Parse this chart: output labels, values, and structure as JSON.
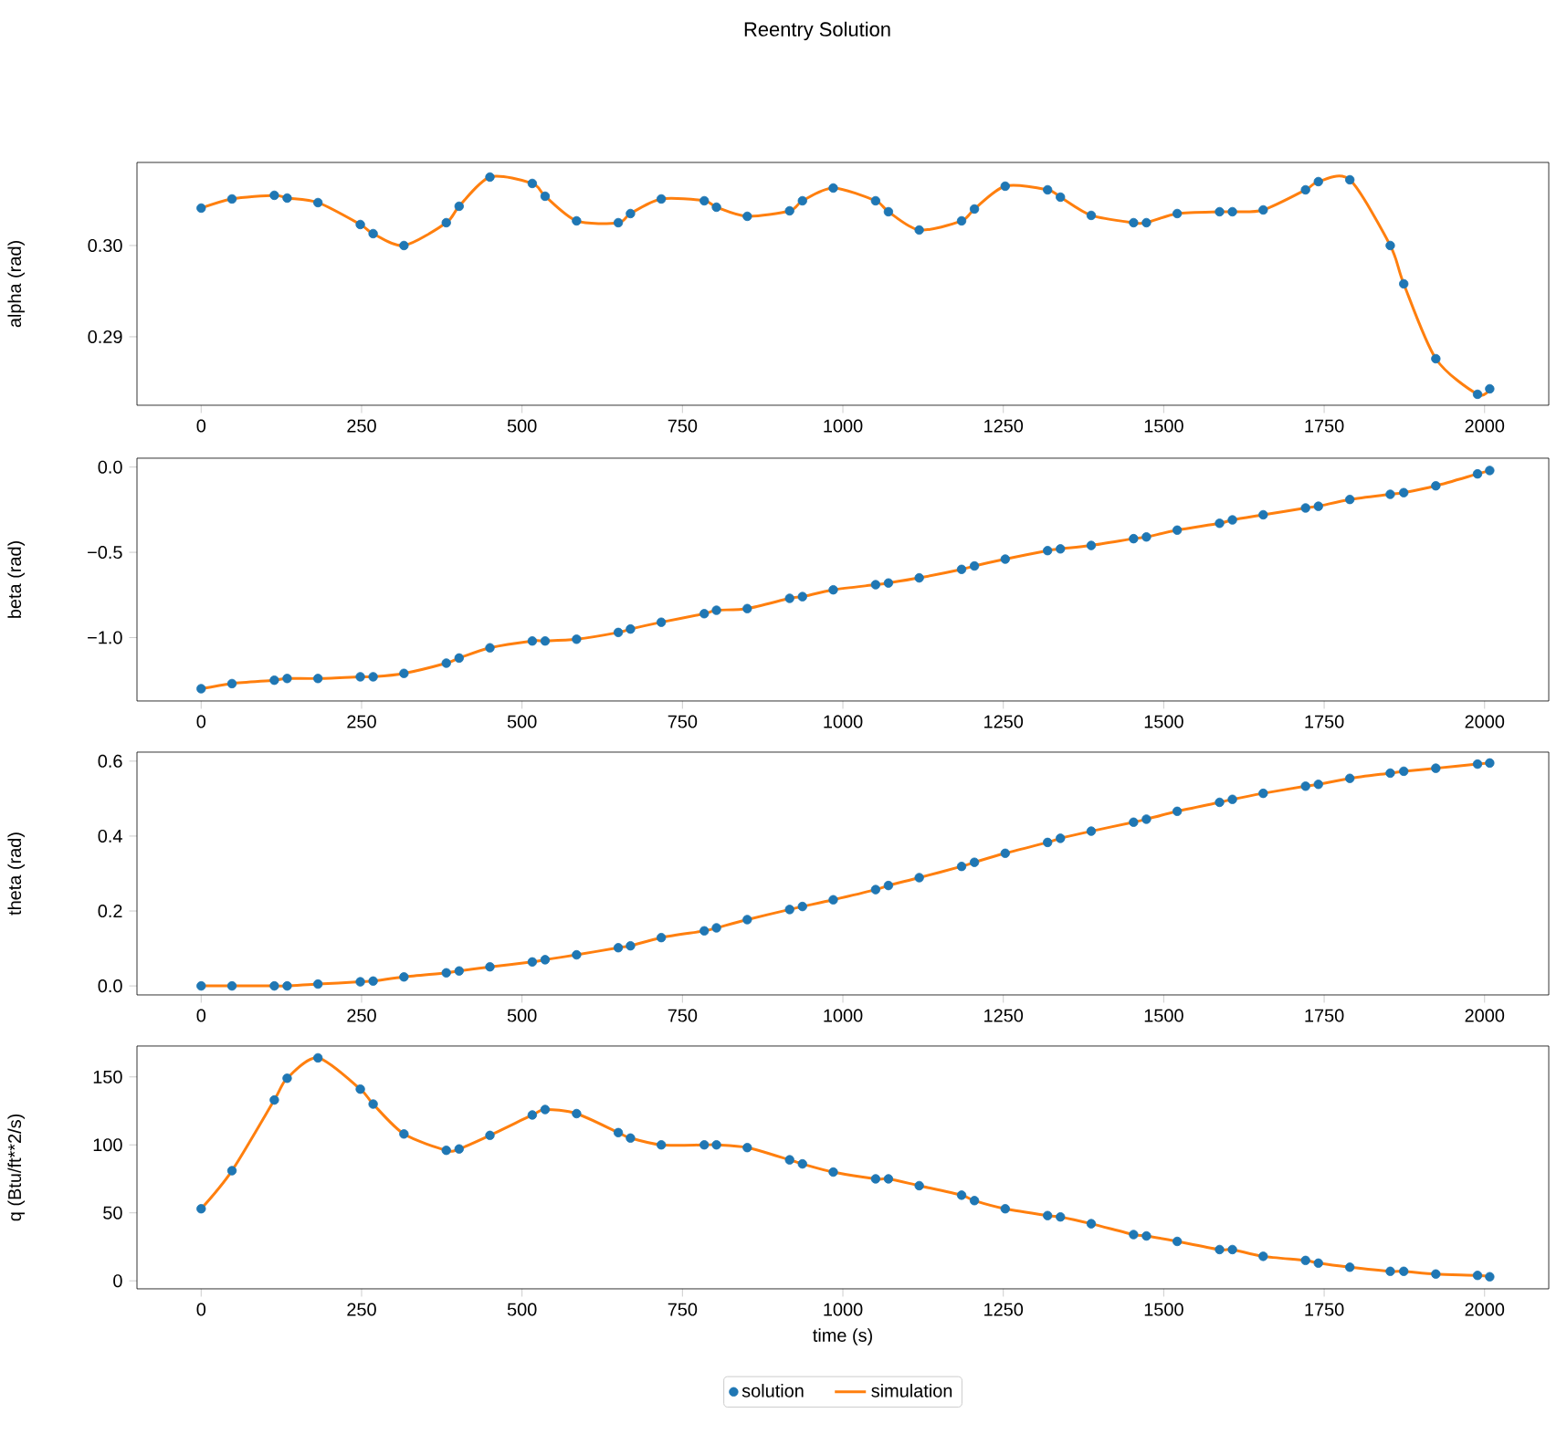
{
  "chart_data": [
    {
      "type": "line",
      "title": "Reentry Solution",
      "ylabel": "alpha (rad)",
      "xlim": [
        -100,
        2100
      ],
      "xticks": [
        0,
        250,
        500,
        750,
        1000,
        1250,
        1500,
        1750,
        2000
      ],
      "ylim": [
        0.2825,
        0.3091
      ],
      "yticks": [
        {
          "value": 0.29,
          "label": "0.29"
        },
        {
          "value": 0.3,
          "label": "0.30"
        }
      ],
      "x": [
        0,
        48,
        114,
        134,
        182,
        248,
        268,
        316,
        382,
        402,
        450,
        516,
        536,
        585,
        650,
        669,
        717,
        784,
        803,
        851,
        917,
        937,
        985,
        1051,
        1071,
        1119,
        1185,
        1205,
        1253,
        1319,
        1339,
        1387,
        1453,
        1473,
        1521,
        1587,
        1607,
        1655,
        1721,
        1741,
        1790,
        1853,
        1874,
        1924,
        1989,
        2008
      ],
      "series": [
        {
          "type": "scatter",
          "marker": "circle",
          "color": "#1f77b4",
          "values": [
            0.3041,
            0.3051,
            0.3055,
            0.3052,
            0.3047,
            0.3023,
            0.3013,
            0.3,
            0.3025,
            0.3043,
            0.3075,
            0.3068,
            0.3054,
            0.3027,
            0.3025,
            0.3035,
            0.3051,
            0.3049,
            0.3042,
            0.3032,
            0.3038,
            0.3049,
            0.3063,
            0.3049,
            0.3037,
            0.3017,
            0.3027,
            0.304,
            0.3065,
            0.3061,
            0.3053,
            0.3033,
            0.3025,
            0.3025,
            0.3035,
            0.3037,
            0.3037,
            0.3039,
            0.3061,
            0.307,
            0.3072,
            0.3,
            0.2958,
            0.2876,
            0.2837,
            0.2843
          ]
        },
        {
          "marker": "none",
          "color": "#ff7f0e",
          "values": [
            0.3041,
            0.3051,
            0.3055,
            0.3052,
            0.3047,
            0.3023,
            0.3013,
            0.3,
            0.3025,
            0.3043,
            0.3075,
            0.3068,
            0.3054,
            0.3027,
            0.3025,
            0.3035,
            0.3051,
            0.3049,
            0.3042,
            0.3032,
            0.3038,
            0.3049,
            0.3063,
            0.3049,
            0.3037,
            0.3017,
            0.3027,
            0.304,
            0.3065,
            0.3061,
            0.3053,
            0.3033,
            0.3025,
            0.3025,
            0.3035,
            0.3037,
            0.3037,
            0.3039,
            0.3061,
            0.307,
            0.3072,
            0.3,
            0.2958,
            0.2876,
            0.2837,
            0.2843
          ]
        }
      ]
    },
    {
      "type": "line",
      "ylabel": "beta (rad)",
      "xlim": [
        -100,
        2100
      ],
      "xticks": [
        0,
        250,
        500,
        750,
        1000,
        1250,
        1500,
        1750,
        2000
      ],
      "ylim": [
        -1.372,
        0.052
      ],
      "yticks": [
        {
          "value": -1.0,
          "label": "−1.0"
        },
        {
          "value": -0.5,
          "label": "−0.5"
        },
        {
          "value": 0.0,
          "label": "0.0"
        }
      ],
      "x": [
        0,
        48,
        114,
        134,
        182,
        248,
        268,
        316,
        382,
        402,
        450,
        516,
        536,
        585,
        650,
        669,
        717,
        784,
        803,
        851,
        917,
        937,
        985,
        1051,
        1071,
        1119,
        1185,
        1205,
        1253,
        1319,
        1339,
        1387,
        1453,
        1473,
        1521,
        1587,
        1607,
        1655,
        1721,
        1741,
        1790,
        1853,
        1874,
        1924,
        1989,
        2008
      ],
      "series": [
        {
          "type": "scatter",
          "marker": "circle",
          "color": "#1f77b4",
          "values": [
            -1.3,
            -1.27,
            -1.25,
            -1.24,
            -1.24,
            -1.23,
            -1.23,
            -1.21,
            -1.15,
            -1.12,
            -1.06,
            -1.02,
            -1.02,
            -1.01,
            -0.97,
            -0.95,
            -0.91,
            -0.86,
            -0.84,
            -0.83,
            -0.77,
            -0.76,
            -0.72,
            -0.69,
            -0.68,
            -0.65,
            -0.6,
            -0.58,
            -0.54,
            -0.49,
            -0.48,
            -0.46,
            -0.42,
            -0.41,
            -0.37,
            -0.33,
            -0.31,
            -0.28,
            -0.24,
            -0.23,
            -0.19,
            -0.16,
            -0.15,
            -0.11,
            -0.04,
            -0.02
          ]
        },
        {
          "marker": "none",
          "color": "#ff7f0e",
          "values": [
            -1.3,
            -1.27,
            -1.25,
            -1.24,
            -1.24,
            -1.23,
            -1.23,
            -1.21,
            -1.15,
            -1.12,
            -1.06,
            -1.02,
            -1.02,
            -1.01,
            -0.97,
            -0.95,
            -0.91,
            -0.86,
            -0.84,
            -0.83,
            -0.77,
            -0.76,
            -0.72,
            -0.69,
            -0.68,
            -0.65,
            -0.6,
            -0.58,
            -0.54,
            -0.49,
            -0.48,
            -0.46,
            -0.42,
            -0.41,
            -0.37,
            -0.33,
            -0.31,
            -0.28,
            -0.24,
            -0.23,
            -0.19,
            -0.16,
            -0.15,
            -0.11,
            -0.04,
            -0.02
          ]
        }
      ]
    },
    {
      "type": "line",
      "ylabel": "theta (rad)",
      "xlim": [
        -100,
        2100
      ],
      "xticks": [
        0,
        250,
        500,
        750,
        1000,
        1250,
        1500,
        1750,
        2000
      ],
      "ylim": [
        -0.024,
        0.624
      ],
      "yticks": [
        {
          "value": 0.0,
          "label": "0.0"
        },
        {
          "value": 0.2,
          "label": "0.2"
        },
        {
          "value": 0.4,
          "label": "0.4"
        },
        {
          "value": 0.6,
          "label": "0.6"
        }
      ],
      "x": [
        0,
        48,
        114,
        134,
        182,
        248,
        268,
        316,
        382,
        402,
        450,
        516,
        536,
        585,
        650,
        669,
        717,
        784,
        803,
        851,
        917,
        937,
        985,
        1051,
        1071,
        1119,
        1185,
        1205,
        1253,
        1319,
        1339,
        1387,
        1453,
        1473,
        1521,
        1587,
        1607,
        1655,
        1721,
        1741,
        1790,
        1853,
        1874,
        1924,
        1989,
        2008
      ],
      "series": [
        {
          "type": "scatter",
          "marker": "circle",
          "color": "#1f77b4",
          "values": [
            0.0,
            0.0,
            0.0,
            0.0,
            0.005,
            0.011,
            0.013,
            0.024,
            0.035,
            0.04,
            0.051,
            0.064,
            0.07,
            0.083,
            0.102,
            0.107,
            0.129,
            0.147,
            0.155,
            0.177,
            0.204,
            0.212,
            0.23,
            0.257,
            0.268,
            0.289,
            0.319,
            0.33,
            0.354,
            0.383,
            0.394,
            0.413,
            0.437,
            0.445,
            0.466,
            0.49,
            0.498,
            0.514,
            0.533,
            0.538,
            0.554,
            0.568,
            0.573,
            0.581,
            0.592,
            0.595
          ]
        },
        {
          "marker": "none",
          "color": "#ff7f0e",
          "values": [
            0.0,
            0.0,
            0.0,
            0.0,
            0.005,
            0.011,
            0.013,
            0.024,
            0.035,
            0.04,
            0.051,
            0.064,
            0.07,
            0.083,
            0.102,
            0.107,
            0.129,
            0.147,
            0.155,
            0.177,
            0.204,
            0.212,
            0.23,
            0.257,
            0.268,
            0.289,
            0.319,
            0.33,
            0.354,
            0.383,
            0.394,
            0.413,
            0.437,
            0.445,
            0.466,
            0.49,
            0.498,
            0.514,
            0.533,
            0.538,
            0.554,
            0.568,
            0.573,
            0.581,
            0.592,
            0.595
          ]
        }
      ]
    },
    {
      "type": "line",
      "xlabel": "time (s)",
      "ylabel": "q (Btu/ft**2/s)",
      "legend": "bottom",
      "xlim": [
        -100,
        2100
      ],
      "xticks": [
        0,
        250,
        500,
        750,
        1000,
        1250,
        1500,
        1750,
        2000
      ],
      "ylim": [
        -5.9,
        172.7
      ],
      "yticks": [
        0,
        50,
        100,
        150
      ],
      "x": [
        0,
        48,
        114,
        134,
        182,
        248,
        268,
        316,
        382,
        402,
        450,
        516,
        536,
        585,
        650,
        669,
        717,
        784,
        803,
        851,
        917,
        937,
        985,
        1051,
        1071,
        1119,
        1185,
        1205,
        1253,
        1319,
        1339,
        1387,
        1453,
        1473,
        1521,
        1587,
        1607,
        1655,
        1721,
        1741,
        1790,
        1853,
        1874,
        1924,
        1989,
        2008
      ],
      "series": [
        {
          "name": "solution",
          "type": "scatter",
          "marker": "circle",
          "color": "#1f77b4",
          "values": [
            53,
            81,
            133,
            149,
            164,
            141,
            130,
            108,
            96,
            97,
            107,
            122,
            126,
            123,
            109,
            105,
            100,
            100,
            100,
            98,
            89,
            86,
            80,
            75,
            75,
            70,
            63,
            59,
            53,
            48,
            47,
            42,
            34,
            33,
            29,
            23,
            23,
            18,
            15,
            13,
            10,
            7,
            7,
            5,
            4,
            3
          ]
        },
        {
          "name": "simulation",
          "marker": "none",
          "color": "#ff7f0e",
          "values": [
            53,
            81,
            133,
            149,
            164,
            141,
            130,
            108,
            96,
            97,
            107,
            122,
            126,
            123,
            109,
            105,
            100,
            100,
            100,
            98,
            89,
            86,
            80,
            75,
            75,
            70,
            63,
            59,
            53,
            48,
            47,
            42,
            34,
            33,
            29,
            23,
            23,
            18,
            15,
            13,
            10,
            7,
            7,
            5,
            4,
            3
          ]
        }
      ]
    }
  ]
}
